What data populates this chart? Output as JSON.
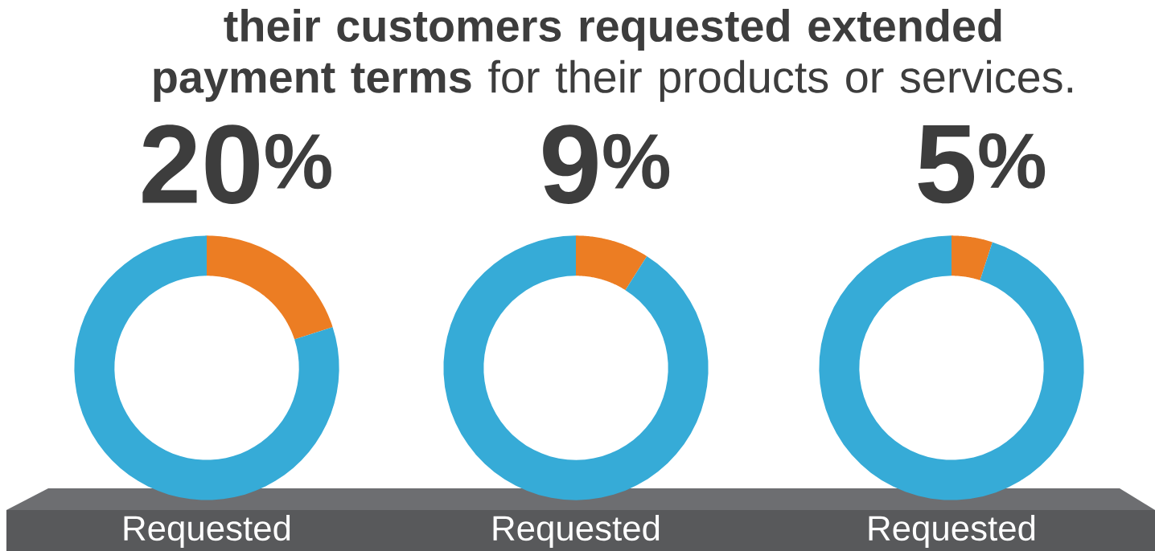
{
  "chart_data": [
    {
      "type": "donut",
      "title": "**their customers requested extended payment terms** for their products or services.",
      "categories": [
        null,
        null
      ],
      "values": [
        20,
        80
      ],
      "colors": [
        "#ec7d23",
        "#36abd7"
      ],
      "value_labels": [
        "20$^{%}$",
        null
      ],
      "annotations": [
        "Requested"
      ]
    },
    {
      "type": "donut",
      "categories": [
        null,
        null
      ],
      "values": [
        9,
        91
      ],
      "colors": [
        "#ec7d23",
        "#36abd7"
      ],
      "value_labels": [
        "9$^{%}$",
        null
      ],
      "annotations": [
        "Requested"
      ]
    },
    {
      "type": "donut",
      "categories": [
        null,
        null
      ],
      "values": [
        5,
        95
      ],
      "colors": [
        "#ec7d23",
        "#36abd7"
      ],
      "value_labels": [
        "5$^{%}$",
        null
      ],
      "annotations": [
        "Requested"
      ]
    }
  ]
}
